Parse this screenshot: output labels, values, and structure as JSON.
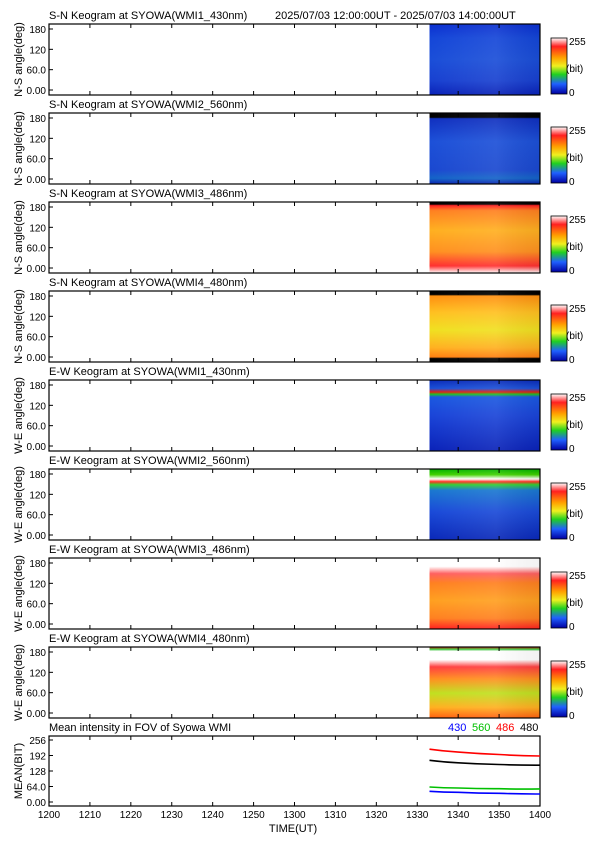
{
  "chart_data": {
    "type": "heatmap",
    "header_time_range": "2025/07/03 12:00:00UT - 2025/07/03 14:00:00UT",
    "data_start": "13:33",
    "x_ticks": [
      "1200",
      "1210",
      "1220",
      "1230",
      "1240",
      "1250",
      "1300",
      "1310",
      "1320",
      "1330",
      "1340",
      "1350",
      "1400"
    ],
    "xlabel": "TIME(UT)",
    "colorbar": {
      "max_label": "255",
      "unit_label": "(bit)",
      "min_label": "0"
    },
    "panels": [
      {
        "title": "S-N Keogram at SYOWA(WMI1_430nm)",
        "ylabel": "N-S angle(deg)",
        "yticks": [
          "180",
          "120",
          "60.0",
          "0.00"
        ],
        "profile": "blue_low"
      },
      {
        "title": "S-N Keogram at SYOWA(WMI2_560nm)",
        "ylabel": "N-S angle(deg)",
        "yticks": [
          "180",
          "120",
          "60.0",
          "0.00"
        ],
        "profile": "blue_low_dark_top"
      },
      {
        "title": "S-N Keogram at SYOWA(WMI3_486nm)",
        "ylabel": "N-S angle(deg)",
        "yticks": [
          "180",
          "120",
          "60.0",
          "0.00"
        ],
        "profile": "red_orange_edges"
      },
      {
        "title": "S-N Keogram at SYOWA(WMI4_480nm)",
        "ylabel": "N-S angle(deg)",
        "yticks": [
          "180",
          "120",
          "60.0",
          "0.00"
        ],
        "profile": "orange_yellow"
      },
      {
        "title": "E-W Keogram at SYOWA(WMI1_430nm)",
        "ylabel": "W-E angle(deg)",
        "yticks": [
          "180",
          "120",
          "60.0",
          "0.00"
        ],
        "profile": "blue_band"
      },
      {
        "title": "E-W Keogram at SYOWA(WMI2_560nm)",
        "ylabel": "W-E angle(deg)",
        "yticks": [
          "180",
          "120",
          "60.0",
          "0.00"
        ],
        "profile": "blue_green_band"
      },
      {
        "title": "E-W Keogram at SYOWA(WMI3_486nm)",
        "ylabel": "W-E angle(deg)",
        "yticks": [
          "180",
          "120",
          "60.0",
          "0.00"
        ],
        "profile": "red_white_top"
      },
      {
        "title": "E-W Keogram at SYOWA(WMI4_480nm)",
        "ylabel": "W-E angle(deg)",
        "yticks": [
          "180",
          "120",
          "60.0",
          "0.00"
        ],
        "profile": "yellow_white_top"
      }
    ],
    "mean_panel": {
      "title": "Mean intensity in FOV of Syowa WMI",
      "ylabel": "MEAN(BIT)",
      "ylim": [
        0,
        256
      ],
      "yticks": [
        "256",
        "192",
        "128",
        "64.0",
        "0.00"
      ],
      "series": [
        {
          "name": "430",
          "color": "#0000ff",
          "x": [
            "13:33",
            "13:40",
            "13:50",
            "14:00"
          ],
          "values": [
            44,
            40,
            36,
            33
          ]
        },
        {
          "name": "560",
          "color": "#00c000",
          "x": [
            "13:33",
            "13:40",
            "13:50",
            "14:00"
          ],
          "values": [
            62,
            58,
            55,
            54
          ]
        },
        {
          "name": "486",
          "color": "#ff0000",
          "x": [
            "13:33",
            "13:40",
            "13:50",
            "14:00"
          ],
          "values": [
            218,
            206,
            196,
            190
          ]
        },
        {
          "name": "480",
          "color": "#000000",
          "x": [
            "13:33",
            "13:40",
            "13:50",
            "14:00"
          ],
          "values": [
            172,
            162,
            155,
            152
          ]
        }
      ]
    }
  }
}
